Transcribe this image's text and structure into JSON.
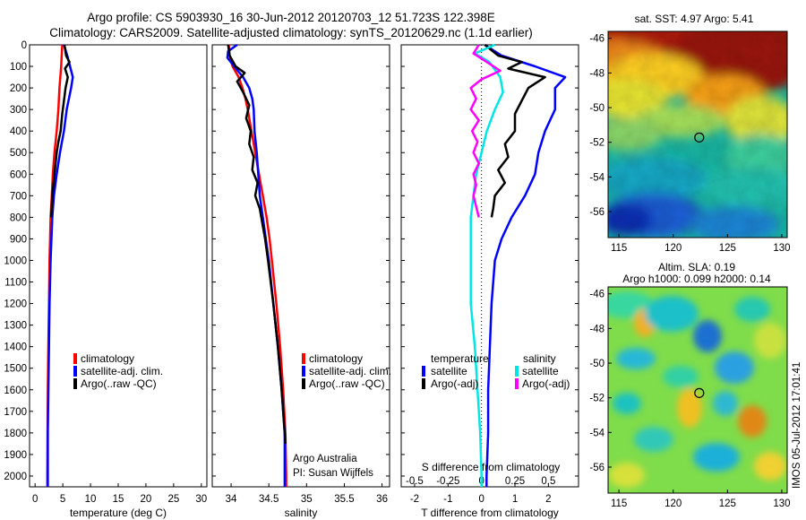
{
  "header": {
    "title_line1": "Argo profile: CS 5903930_16 30-Jun-2012 20120703_12 51.723S 122.398E",
    "title_line2": "Climatology: CARS2009. Satellite-adjusted climatology: synTS_20120629.nc (1.1d earlier)"
  },
  "depth_ticks": [
    "0",
    "100",
    "200",
    "300",
    "400",
    "500",
    "600",
    "700",
    "800",
    "900",
    "1000",
    "1100",
    "1200",
    "1300",
    "1400",
    "1500",
    "1600",
    "1700",
    "1800",
    "1900",
    "2000"
  ],
  "colors": {
    "climatology": "#ff0000",
    "satellite": "#0000ff",
    "argo": "#000000",
    "sat_salinity": "#00e6e6",
    "argo_salinity_diff": "#ff00ff"
  },
  "chart_data": [
    {
      "type": "line",
      "panel": "temperature",
      "xlabel": "temperature (deg C)",
      "xlim": [
        -1,
        31
      ],
      "ylim": [
        2050,
        0
      ],
      "x_ticks": [
        "0",
        "5",
        "10",
        "15",
        "20",
        "25",
        "30"
      ],
      "legend": [
        "climatology",
        "satellite-adj. clim.",
        "Argo(..raw -QC)"
      ],
      "series": [
        {
          "name": "climatology",
          "color": "#ff0000",
          "depth": [
            0,
            100,
            200,
            300,
            400,
            500,
            600,
            700,
            800,
            1000,
            1200,
            1400,
            1600,
            1800,
            2000,
            2050
          ],
          "values": [
            4.9,
            4.7,
            4.4,
            4.2,
            3.9,
            3.5,
            3.2,
            3.0,
            2.8,
            2.6,
            2.5,
            2.4,
            2.3,
            2.25,
            2.2,
            2.2
          ]
        },
        {
          "name": "satellite-adj. clim.",
          "color": "#0000ff",
          "depth": [
            0,
            50,
            100,
            150,
            200,
            300,
            400,
            500,
            600,
            700,
            800,
            1000,
            1200,
            1400,
            1600,
            1800,
            2000,
            2050
          ],
          "values": [
            5.2,
            5.8,
            6.3,
            6.8,
            6.5,
            5.7,
            5.2,
            4.5,
            3.9,
            3.4,
            3.1,
            2.8,
            2.6,
            2.5,
            2.4,
            2.3,
            2.3,
            2.3
          ]
        },
        {
          "name": "Argo(..raw -QC)",
          "color": "#000000",
          "depth": [
            0,
            50,
            80,
            110,
            150,
            200,
            260,
            320,
            400,
            450,
            500,
            550,
            600,
            650,
            700,
            750,
            800
          ],
          "values": [
            5.3,
            5.6,
            6.2,
            5.4,
            5.9,
            5.5,
            5.2,
            4.9,
            4.6,
            4.2,
            3.9,
            3.7,
            3.5,
            3.3,
            3.1,
            3.0,
            2.9
          ]
        }
      ]
    },
    {
      "type": "line",
      "panel": "salinity",
      "xlabel": "salinity",
      "xlim": [
        33.75,
        36.1
      ],
      "ylim": [
        2050,
        0
      ],
      "x_ticks": [
        "34",
        "34.5",
        "35",
        "35.5",
        "36"
      ],
      "legend": [
        "climatology",
        "satellite-adj. clim.",
        "Argo(..raw -QC)"
      ],
      "annotation_line1": "Argo Australia",
      "annotation_line2": "PI: Susan Wijffels",
      "series": [
        {
          "name": "climatology",
          "color": "#ff0000",
          "depth": [
            0,
            50,
            100,
            150,
            200,
            250,
            300,
            400,
            500,
            600,
            700,
            800,
            900,
            1000,
            1200,
            1400,
            1600,
            1800,
            2000,
            2050
          ],
          "values": [
            33.97,
            33.98,
            34.02,
            34.1,
            34.15,
            34.19,
            34.22,
            34.27,
            34.32,
            34.37,
            34.42,
            34.47,
            34.51,
            34.54,
            34.6,
            34.65,
            34.69,
            34.72,
            34.73,
            34.73
          ]
        },
        {
          "name": "satellite-adj. clim.",
          "color": "#0000ff",
          "depth": [
            0,
            30,
            60,
            100,
            150,
            200,
            250,
            300,
            400,
            500,
            600,
            700,
            800,
            900,
            1000,
            1200,
            1400,
            1600,
            1800,
            2000,
            2050
          ],
          "values": [
            34.08,
            33.96,
            33.95,
            34.04,
            34.16,
            34.24,
            34.28,
            34.3,
            34.31,
            34.34,
            34.36,
            34.38,
            34.42,
            34.46,
            34.5,
            34.56,
            34.62,
            34.67,
            34.71,
            34.71,
            34.71
          ]
        },
        {
          "name": "Argo(..raw -QC)",
          "color": "#000000",
          "depth": [
            0,
            50,
            100,
            130,
            170,
            220,
            280,
            340,
            400,
            460,
            520,
            580,
            640,
            700,
            760,
            820,
            900,
            1000,
            1200,
            1400,
            1600,
            1800,
            1850
          ],
          "values": [
            33.96,
            33.98,
            34.06,
            34.18,
            34.08,
            34.16,
            34.24,
            34.2,
            34.26,
            34.24,
            34.3,
            34.28,
            34.35,
            34.32,
            34.38,
            34.41,
            34.45,
            34.49,
            34.56,
            34.62,
            34.67,
            34.71,
            34.72
          ]
        }
      ]
    },
    {
      "type": "line",
      "panel": "difference",
      "xlabel": "T difference from climatology",
      "x2label": "S difference from climatology",
      "xlim": [
        -2.4,
        2.9
      ],
      "ylim": [
        2050,
        0
      ],
      "x_ticks": [
        "-2",
        "-1",
        "0",
        "1",
        "2"
      ],
      "x2_ticks": [
        "-0.5",
        "-0.25",
        "0",
        "0.25",
        "0.5"
      ],
      "legend_temperature_title": "temperature",
      "legend_salinity_title": "salinity",
      "legend": [
        "satellite",
        "Argo(-adj)",
        "satellite",
        "Argo(-adj)"
      ],
      "series": [
        {
          "name": "satellite",
          "group": "temperature",
          "color": "#0000ff",
          "depth": [
            0,
            50,
            100,
            150,
            200,
            300,
            400,
            500,
            600,
            700,
            800,
            900,
            1000,
            1200,
            1400,
            1600,
            1800,
            2000,
            2050
          ],
          "values": [
            0.1,
            0.6,
            1.6,
            2.5,
            2.2,
            2.2,
            1.9,
            1.7,
            1.6,
            1.3,
            0.9,
            0.6,
            0.4,
            0.3,
            0.25,
            0.2,
            0.2,
            0.15,
            0.15
          ]
        },
        {
          "name": "Argo(-adj)",
          "group": "temperature",
          "color": "#000000",
          "depth": [
            0,
            50,
            80,
            110,
            150,
            200,
            260,
            320,
            400,
            460,
            520,
            580,
            640,
            700,
            760,
            800
          ],
          "values": [
            0.1,
            0.5,
            1.2,
            0.8,
            1.9,
            1.4,
            1.2,
            1.0,
            1.0,
            0.7,
            0.8,
            0.5,
            0.7,
            0.4,
            0.35,
            0.3
          ]
        },
        {
          "name": "satellite",
          "group": "salinity",
          "color": "#00e6e6",
          "depth": [
            0,
            40,
            80,
            150,
            220,
            300,
            400,
            500,
            600,
            700,
            800,
            1000,
            1200,
            1400,
            1600,
            1800,
            2000,
            2050
          ],
          "values": [
            0.1,
            -0.05,
            0.06,
            0.14,
            0.16,
            0.1,
            0.04,
            0.0,
            -0.04,
            -0.06,
            -0.08,
            -0.08,
            -0.08,
            -0.05,
            -0.03,
            -0.01,
            0.0,
            0.0
          ]
        },
        {
          "name": "Argo(-adj)",
          "group": "salinity",
          "color": "#ff00ff",
          "depth": [
            0,
            40,
            80,
            120,
            160,
            200,
            250,
            300,
            350,
            400,
            450,
            500,
            550,
            600,
            650,
            700,
            750,
            800
          ],
          "values": [
            -0.02,
            -0.06,
            0.04,
            0.14,
            0.0,
            -0.08,
            -0.04,
            -0.08,
            -0.02,
            -0.07,
            -0.03,
            -0.06,
            -0.02,
            -0.06,
            -0.04,
            -0.06,
            -0.04,
            -0.02
          ]
        }
      ]
    },
    {
      "type": "heatmap",
      "panel": "sst_map",
      "title": "sat. SST: 4.97 Argo: 5.41",
      "xlim": [
        114,
        130.5
      ],
      "ylim": [
        -57.5,
        -45.6
      ],
      "x_ticks": [
        "115",
        "120",
        "125",
        "130"
      ],
      "y_ticks": [
        "-46",
        "-48",
        "-50",
        "-52",
        "-54",
        "-56"
      ],
      "argo_position": [
        122.398,
        -51.723
      ]
    },
    {
      "type": "heatmap",
      "panel": "altimetry_map",
      "title_line1": "Altim. SLA: 0.19",
      "title_line2": "Argo h1000: 0.099 h2000: 0.14",
      "xlim": [
        114,
        130.5
      ],
      "ylim": [
        -57.5,
        -45.6
      ],
      "x_ticks": [
        "115",
        "120",
        "125",
        "130"
      ],
      "y_ticks": [
        "-46",
        "-48",
        "-50",
        "-52",
        "-54",
        "-56"
      ],
      "argo_position": [
        122.398,
        -51.723
      ]
    }
  ],
  "footer": {
    "stamp": "IMOS 05-Jul-2012 17:01:41"
  }
}
